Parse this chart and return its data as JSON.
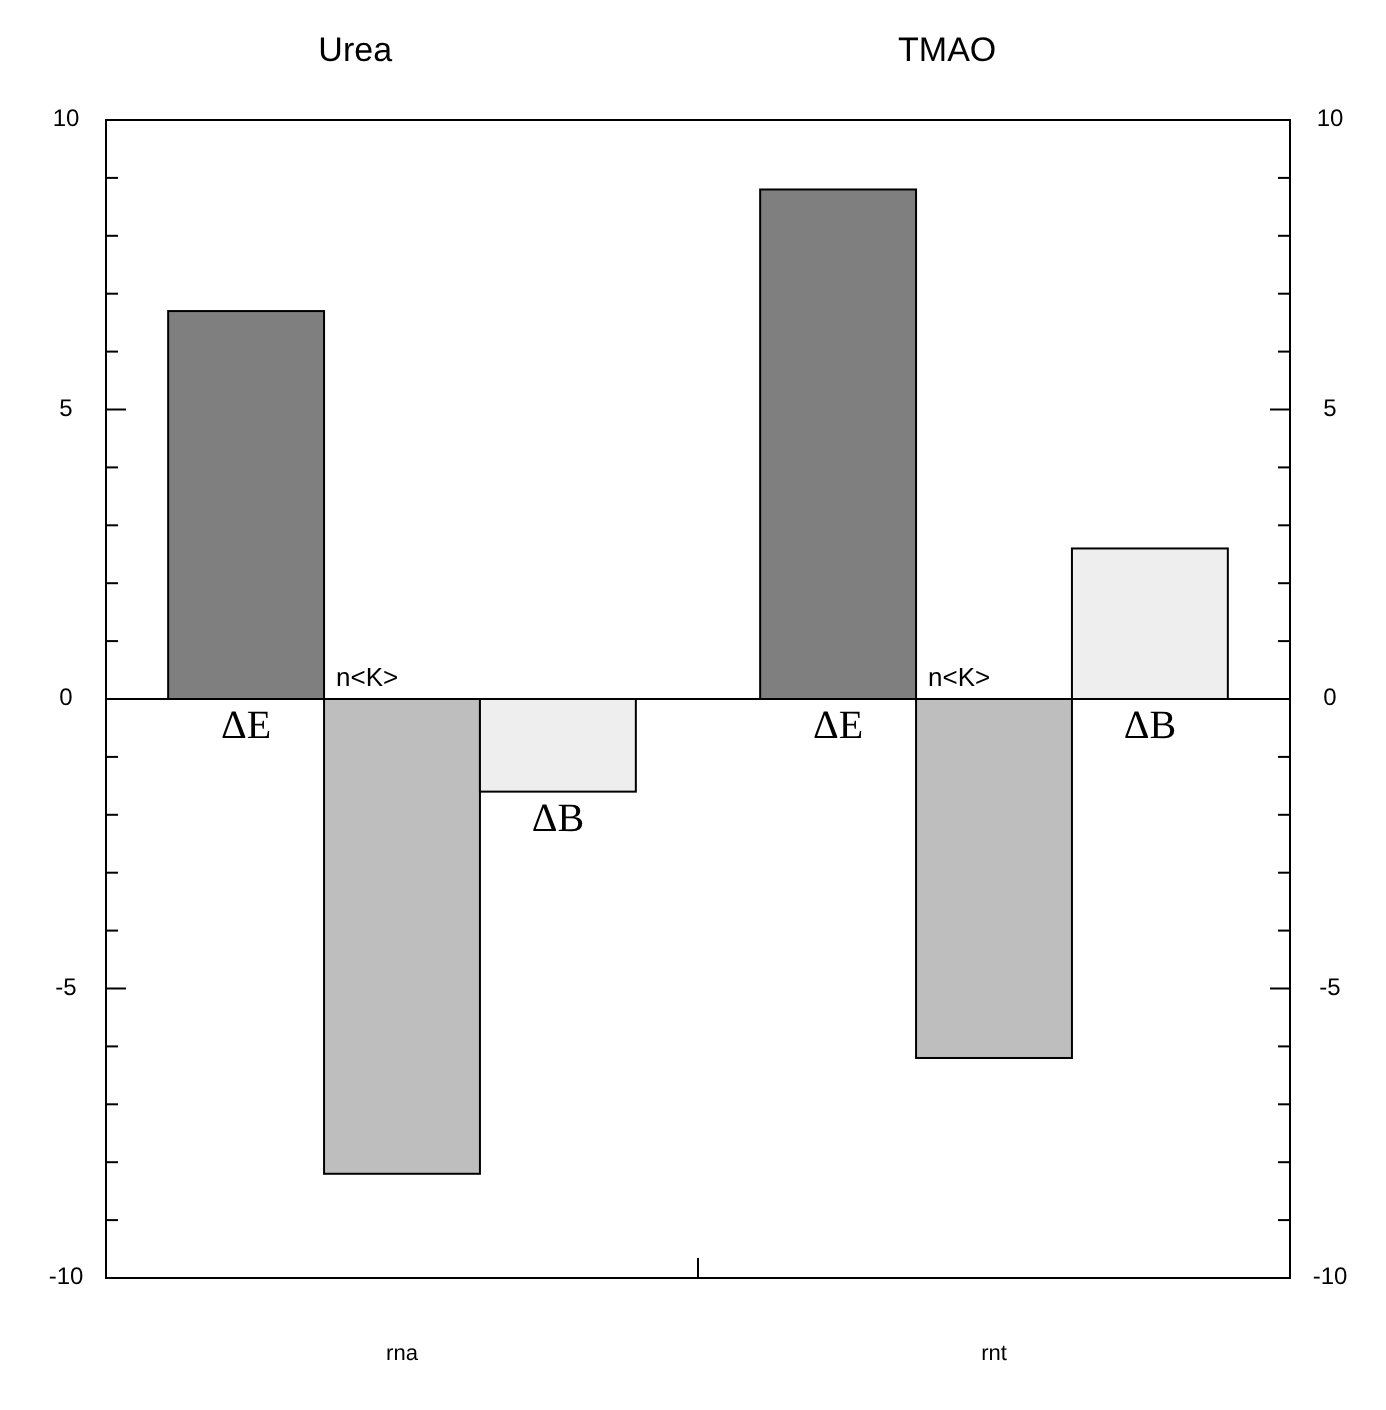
{
  "chart_data": {
    "type": "bar",
    "categories": [
      "rna",
      "rnt"
    ],
    "series": [
      {
        "name": "ΔE",
        "color": "#7f7f7f",
        "values": [
          6.7,
          8.8
        ]
      },
      {
        "name": "n<K>",
        "color": "#bebebe",
        "values": [
          -8.2,
          -6.2
        ]
      },
      {
        "name": "ΔB",
        "color": "#eeeeee",
        "values": [
          -1.6,
          2.6
        ]
      }
    ],
    "annotations": [
      "Urea",
      "TMAO"
    ],
    "ylim": [
      -10,
      10
    ],
    "yticks": [
      -10,
      {
        "value": -9,
        "label": null
      },
      {
        "value": -8,
        "label": null
      },
      {
        "value": -7,
        "label": null
      },
      {
        "value": -6,
        "label": null
      },
      -5,
      {
        "value": -4,
        "label": null
      },
      {
        "value": -3,
        "label": null
      },
      {
        "value": -2,
        "label": null
      },
      {
        "value": -1,
        "label": null
      },
      0,
      {
        "value": 1,
        "label": null
      },
      {
        "value": 2,
        "label": null
      },
      {
        "value": 3,
        "label": null
      },
      {
        "value": 4,
        "label": null
      },
      5,
      {
        "value": 6,
        "label": null
      },
      {
        "value": 7,
        "label": null
      },
      {
        "value": 8,
        "label": null
      },
      {
        "value": 9,
        "label": null
      },
      10
    ],
    "y2lim": [
      -10,
      10
    ],
    "y2ticks": [
      -10,
      {
        "value": -9,
        "label": null
      },
      {
        "value": -8,
        "label": null
      },
      {
        "value": -7,
        "label": null
      },
      {
        "value": -6,
        "label": null
      },
      -5,
      {
        "value": -4,
        "label": null
      },
      {
        "value": -3,
        "label": null
      },
      {
        "value": -2,
        "label": null
      },
      {
        "value": -1,
        "label": null
      },
      0,
      {
        "value": 1,
        "label": null
      },
      {
        "value": 2,
        "label": null
      },
      {
        "value": 3,
        "label": null
      },
      {
        "value": 4,
        "label": null
      },
      5,
      {
        "value": 6,
        "label": null
      },
      {
        "value": 7,
        "label": null
      },
      {
        "value": 8,
        "label": null
      },
      {
        "value": 9,
        "label": null
      },
      10
    ],
    "legend": false
  }
}
